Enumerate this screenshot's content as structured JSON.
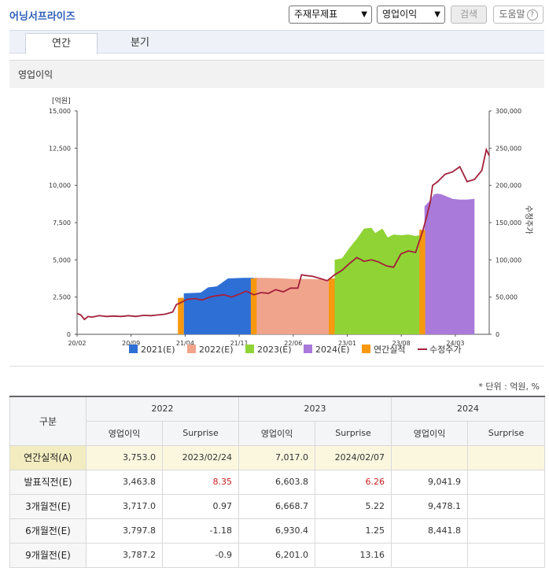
{
  "header": {
    "company": "어닝서프라이즈",
    "select_statement": "주재무제표",
    "select_item": "영업이익",
    "search_button": "검색",
    "help_button": "도움말",
    "help_icon": "?"
  },
  "tabs": [
    "연간",
    "분기"
  ],
  "section_title": "영업이익",
  "chart_data": {
    "type": "area",
    "y_unit_label": "[억원]",
    "y_left_ticks": [
      "15,000",
      "12,500",
      "10,000",
      "7,500",
      "5,000",
      "2,500",
      "0"
    ],
    "y_right_ticks": [
      "300,000",
      "250,000",
      "200,000",
      "150,000",
      "100,000",
      "50,000",
      "0"
    ],
    "y_right_label": "수정주가",
    "ylim_left": [
      0,
      15000
    ],
    "ylim_right": [
      0,
      300000
    ],
    "x_ticks": [
      "20/02",
      "20/09",
      "21/04",
      "21/11",
      "22/06",
      "23/01",
      "23/08",
      "24/03"
    ],
    "legend": [
      {
        "name": "2021(E)",
        "color": "#2e6fd6"
      },
      {
        "name": "2022(E)",
        "color": "#f0a48c"
      },
      {
        "name": "2023(E)",
        "color": "#8fd335"
      },
      {
        "name": "2024(E)",
        "color": "#a97ad9"
      },
      {
        "name": "연간실적",
        "color": "#f7980f"
      },
      {
        "name": "수정주가",
        "color": "#a3203c"
      }
    ],
    "consensus_series": [
      {
        "name": "2021(E)",
        "color": "#2e6fd6",
        "points": [
          [
            14.5,
            2750
          ],
          [
            15.9,
            2780
          ],
          [
            16.8,
            2800
          ],
          [
            17.8,
            3150
          ],
          [
            19,
            3220
          ],
          [
            20.5,
            3750
          ],
          [
            22.5,
            3790
          ],
          [
            24.0,
            3800
          ]
        ]
      },
      {
        "name": "2022(E)",
        "color": "#f0a48c",
        "points": [
          [
            24.0,
            3800
          ],
          [
            25.5,
            3790
          ],
          [
            27.5,
            3760
          ],
          [
            29.5,
            3710
          ],
          [
            31.5,
            3720
          ],
          [
            33.0,
            3690
          ],
          [
            34.5,
            3600
          ],
          [
            35.0,
            3550
          ]
        ]
      },
      {
        "name": "2023(E)",
        "color": "#8fd335",
        "points": [
          [
            35.0,
            5000
          ],
          [
            36.0,
            5100
          ],
          [
            37.0,
            5800
          ],
          [
            38.0,
            6400
          ],
          [
            39.0,
            7100
          ],
          [
            40.0,
            7150
          ],
          [
            40.5,
            6800
          ],
          [
            41.5,
            7100
          ],
          [
            42.2,
            6500
          ],
          [
            43,
            6700
          ],
          [
            44,
            6650
          ],
          [
            45,
            6700
          ],
          [
            46,
            6600
          ],
          [
            47,
            6700
          ],
          [
            47.2,
            7000
          ]
        ]
      },
      {
        "name": "2024(E)",
        "color": "#a97ad9",
        "points": [
          [
            47.2,
            8600
          ],
          [
            48.0,
            9000
          ],
          [
            48.5,
            9400
          ],
          [
            49,
            9450
          ],
          [
            49.5,
            9400
          ],
          [
            50,
            9300
          ],
          [
            51,
            9100
          ],
          [
            52,
            9050
          ],
          [
            53,
            9050
          ],
          [
            54,
            9100
          ]
        ]
      }
    ],
    "actual_bars": [
      {
        "x": [
          13.7,
          14.5
        ],
        "value": 2450
      },
      {
        "x": [
          23.6,
          24.4
        ],
        "value": 3753
      },
      {
        "x": [
          34.2,
          35.0
        ],
        "value": 3753
      },
      {
        "x": [
          46.5,
          47.3
        ],
        "value": 7017
      }
    ],
    "price_series": [
      [
        0,
        28000
      ],
      [
        0.5,
        26000
      ],
      [
        1,
        20000
      ],
      [
        1.5,
        24000
      ],
      [
        2,
        23000
      ],
      [
        3,
        25000
      ],
      [
        4,
        24000
      ],
      [
        5,
        24500
      ],
      [
        6,
        24000
      ],
      [
        7,
        25000
      ],
      [
        8,
        24000
      ],
      [
        9,
        25500
      ],
      [
        10,
        25000
      ],
      [
        11,
        26000
      ],
      [
        12,
        27000
      ],
      [
        13,
        30000
      ],
      [
        13.5,
        40000
      ],
      [
        14,
        42000
      ],
      [
        15,
        47000
      ],
      [
        16,
        48000
      ],
      [
        17,
        46000
      ],
      [
        18,
        50000
      ],
      [
        19,
        52000
      ],
      [
        20,
        53000
      ],
      [
        21,
        50000
      ],
      [
        22,
        54000
      ],
      [
        23,
        58000
      ],
      [
        24,
        53000
      ],
      [
        25,
        56000
      ],
      [
        26,
        55000
      ],
      [
        27,
        60000
      ],
      [
        28,
        57000
      ],
      [
        29,
        62000
      ],
      [
        30,
        62000
      ],
      [
        30.5,
        80000
      ],
      [
        31,
        79000
      ],
      [
        32,
        78000
      ],
      [
        33,
        75000
      ],
      [
        34,
        72000
      ],
      [
        35,
        80000
      ],
      [
        36,
        86000
      ],
      [
        37,
        95000
      ],
      [
        38,
        103000
      ],
      [
        39,
        98000
      ],
      [
        40,
        100000
      ],
      [
        41,
        97000
      ],
      [
        42,
        92000
      ],
      [
        43,
        90000
      ],
      [
        44,
        108000
      ],
      [
        45,
        112000
      ],
      [
        46,
        110000
      ],
      [
        47,
        140000
      ],
      [
        47.5,
        158000
      ],
      [
        48,
        178000
      ],
      [
        48.3,
        200000
      ],
      [
        49,
        205000
      ],
      [
        50,
        215000
      ],
      [
        51,
        218000
      ],
      [
        52,
        225000
      ],
      [
        53,
        205000
      ],
      [
        54,
        208000
      ],
      [
        55,
        220000
      ],
      [
        55.6,
        248000
      ],
      [
        56,
        240000
      ]
    ]
  },
  "unit_note": "* 단위 : 억원, %",
  "table": {
    "rowhead_label": "구분",
    "years": [
      "2022",
      "2023",
      "2024"
    ],
    "subheaders": [
      "영업이익",
      "Surprise"
    ],
    "rows": [
      {
        "label": "연간실적(A)",
        "cells": [
          "3,753.0",
          "2023/02/24",
          "7,017.0",
          "2024/02/07",
          "",
          ""
        ],
        "red": []
      },
      {
        "label": "발표직전(E)",
        "cells": [
          "3,463.8",
          "8.35",
          "6,603.8",
          "6.26",
          "9,041.9",
          ""
        ],
        "red": [
          1,
          3
        ]
      },
      {
        "label": "3개월전(E)",
        "cells": [
          "3,717.0",
          "0.97",
          "6,668.7",
          "5.22",
          "9,478.1",
          ""
        ],
        "red": []
      },
      {
        "label": "6개월전(E)",
        "cells": [
          "3,797.8",
          "-1.18",
          "6,930.4",
          "1.25",
          "8,441.8",
          ""
        ],
        "red": []
      },
      {
        "label": "9개월전(E)",
        "cells": [
          "3,787.2",
          "-0.9",
          "6,201.0",
          "13.16",
          "",
          ""
        ],
        "red": []
      }
    ]
  }
}
